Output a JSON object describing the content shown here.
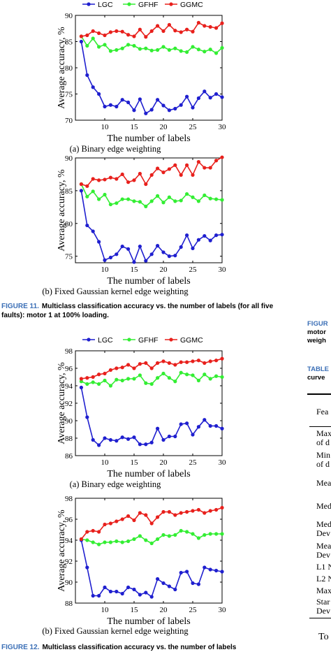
{
  "figure11": {
    "caption_number": "FIGURE 11.",
    "caption_text": "Multiclass classification accuracy vs. the number of labels (for all five faults): motor 1 at 100% loading."
  },
  "figure12": {
    "caption_number": "FIGURE 12.",
    "caption_text": "Multiclass classification accuracy vs. the number of labels"
  },
  "right_column": {
    "figure_fragment": [
      "FIGUR",
      "motor",
      "weigh"
    ],
    "table_fragment": [
      "TABLE",
      "curve"
    ],
    "table_cells": [
      "Fea",
      "Max",
      "of d",
      "Min",
      "of d",
      "Mea",
      "Med",
      "Med",
      "Dev",
      "Mea",
      "Dev",
      "L1 N",
      "L2 N",
      "Max",
      "Star",
      "Dev"
    ],
    "bottom_text": "To"
  },
  "chart_data": [
    {
      "id": "fig11a",
      "type": "line",
      "subcaption": "(a) Binary edge weighting",
      "xlabel": "The number of labels",
      "ylabel": "Average accuracy, %",
      "xlim": [
        5,
        30
      ],
      "ylim": [
        70,
        90
      ],
      "xticks": [
        10,
        15,
        20,
        25,
        30
      ],
      "yticks": [
        70,
        75,
        80,
        85,
        90
      ],
      "legend_position": "top",
      "x": [
        6,
        7,
        8,
        9,
        10,
        11,
        12,
        13,
        14,
        15,
        16,
        17,
        18,
        19,
        20,
        21,
        22,
        23,
        24,
        25,
        26,
        27,
        28,
        29,
        30
      ],
      "series": [
        {
          "name": "LGC",
          "color": "#1f1fcf",
          "values": [
            85.0,
            78.6,
            76.3,
            75.0,
            72.6,
            72.9,
            72.6,
            73.9,
            73.4,
            71.9,
            74.0,
            71.3,
            72.0,
            73.9,
            72.8,
            71.9,
            72.2,
            72.9,
            74.5,
            72.4,
            74.2,
            75.5,
            74.3,
            75.0,
            74.4
          ]
        },
        {
          "name": "GFHF",
          "color": "#33ee33",
          "values": [
            86.0,
            84.2,
            85.6,
            84.0,
            84.4,
            83.2,
            83.4,
            83.7,
            84.4,
            84.2,
            83.6,
            83.7,
            83.3,
            83.4,
            84.0,
            83.4,
            83.7,
            83.2,
            83.0,
            84.0,
            83.5,
            83.1,
            83.5,
            82.8,
            83.8
          ]
        },
        {
          "name": "GGMC",
          "color": "#e8201c",
          "values": [
            86.0,
            86.2,
            87.0,
            86.6,
            86.2,
            86.8,
            87.0,
            86.9,
            86.3,
            86.0,
            87.3,
            85.9,
            87.0,
            88.0,
            87.0,
            88.2,
            87.1,
            86.8,
            87.3,
            86.9,
            88.6,
            88.0,
            87.8,
            87.6,
            88.5
          ]
        }
      ]
    },
    {
      "id": "fig11b",
      "type": "line",
      "subcaption": "(b) Fixed Gaussian kernel edge weighting",
      "xlabel": "The number of labels",
      "ylabel": "Average accuracy, %",
      "xlim": [
        5,
        30
      ],
      "ylim": [
        74,
        90
      ],
      "xticks": [
        10,
        15,
        20,
        25,
        30
      ],
      "yticks": [
        75,
        80,
        85,
        90
      ],
      "legend_position": "none",
      "x": [
        6,
        7,
        8,
        9,
        10,
        11,
        12,
        13,
        14,
        15,
        16,
        17,
        18,
        19,
        20,
        21,
        22,
        23,
        24,
        25,
        26,
        27,
        28,
        29,
        30
      ],
      "series": [
        {
          "name": "LGC",
          "color": "#1f1fcf",
          "values": [
            85.0,
            79.7,
            78.8,
            77.2,
            74.4,
            74.8,
            75.3,
            76.5,
            76.1,
            74.1,
            76.5,
            74.3,
            75.3,
            76.6,
            75.6,
            75.0,
            75.1,
            76.4,
            78.2,
            76.2,
            77.5,
            78.1,
            77.4,
            78.2,
            78.3
          ]
        },
        {
          "name": "GFHF",
          "color": "#33ee33",
          "values": [
            86.0,
            84.1,
            84.9,
            83.7,
            84.4,
            82.9,
            83.1,
            83.7,
            83.7,
            83.4,
            83.3,
            82.6,
            83.4,
            84.2,
            83.2,
            84.0,
            83.4,
            83.5,
            84.5,
            84.0,
            83.4,
            84.3,
            83.8,
            83.7,
            83.6
          ]
        },
        {
          "name": "GGMC",
          "color": "#e8201c",
          "values": [
            86.0,
            85.7,
            86.8,
            86.6,
            86.7,
            87.0,
            86.8,
            87.5,
            86.3,
            86.6,
            87.6,
            86.0,
            87.4,
            88.4,
            87.8,
            88.3,
            88.9,
            87.4,
            88.9,
            87.4,
            89.4,
            88.5,
            88.5,
            89.6,
            90.1
          ]
        }
      ]
    },
    {
      "id": "fig12a",
      "type": "line",
      "subcaption": "(a) Binary edge weighting",
      "xlabel": "The number of labels",
      "ylabel": "Average accuracy, %",
      "xlim": [
        5,
        30
      ],
      "ylim": [
        86,
        98
      ],
      "xticks": [
        10,
        15,
        20,
        25,
        30
      ],
      "yticks": [
        86,
        88,
        90,
        92,
        94,
        96,
        98
      ],
      "legend_position": "top",
      "x": [
        6,
        7,
        8,
        9,
        10,
        11,
        12,
        13,
        14,
        15,
        16,
        17,
        18,
        19,
        20,
        21,
        22,
        23,
        24,
        25,
        26,
        27,
        28,
        29,
        30
      ],
      "series": [
        {
          "name": "LGC",
          "color": "#1f1fcf",
          "values": [
            93.8,
            90.4,
            87.8,
            87.2,
            88.0,
            87.8,
            87.7,
            88.1,
            87.9,
            88.1,
            87.3,
            87.3,
            87.5,
            89.1,
            87.8,
            88.2,
            88.2,
            89.6,
            89.7,
            88.4,
            89.3,
            90.1,
            89.4,
            89.4,
            89.1
          ]
        },
        {
          "name": "GFHF",
          "color": "#33ee33",
          "values": [
            94.5,
            94.2,
            94.4,
            94.2,
            94.6,
            94.0,
            94.7,
            94.6,
            94.8,
            94.8,
            95.2,
            94.3,
            94.2,
            94.9,
            95.4,
            94.9,
            94.5,
            95.5,
            95.3,
            95.2,
            94.6,
            95.3,
            94.8,
            95.1,
            95.0
          ]
        },
        {
          "name": "GGMC",
          "color": "#e8201c",
          "values": [
            94.8,
            94.9,
            95.0,
            95.3,
            95.4,
            95.8,
            96.0,
            96.1,
            96.4,
            96.0,
            96.5,
            96.6,
            96.0,
            96.6,
            96.8,
            96.6,
            96.4,
            96.7,
            96.7,
            96.8,
            96.9,
            96.6,
            96.8,
            96.9,
            97.1
          ]
        }
      ]
    },
    {
      "id": "fig12b",
      "type": "line",
      "subcaption": "(b) Fixed Gaussian kernel edge weighting",
      "xlabel": "The number of labels",
      "ylabel": "Average accuracy, %",
      "xlim": [
        5,
        30
      ],
      "ylim": [
        88,
        98
      ],
      "xticks": [
        10,
        15,
        20,
        25,
        30
      ],
      "yticks": [
        88,
        90,
        92,
        94,
        96,
        98
      ],
      "legend_position": "none",
      "x": [
        6,
        7,
        8,
        9,
        10,
        11,
        12,
        13,
        14,
        15,
        16,
        17,
        18,
        19,
        20,
        21,
        22,
        23,
        24,
        25,
        26,
        27,
        28,
        29,
        30
      ],
      "series": [
        {
          "name": "LGC",
          "color": "#1f1fcf",
          "values": [
            94.0,
            91.4,
            88.7,
            88.7,
            89.5,
            89.1,
            89.1,
            88.9,
            89.5,
            89.3,
            88.8,
            89.0,
            88.6,
            90.3,
            89.9,
            89.6,
            89.3,
            90.9,
            91.0,
            89.9,
            89.8,
            91.4,
            91.2,
            91.1,
            91.0
          ]
        },
        {
          "name": "GFHF",
          "color": "#33ee33",
          "values": [
            94.1,
            94.0,
            93.8,
            93.6,
            93.8,
            93.8,
            93.9,
            93.8,
            93.9,
            94.1,
            94.4,
            94.0,
            93.7,
            94.1,
            94.5,
            94.4,
            94.5,
            94.9,
            94.8,
            94.6,
            94.2,
            94.5,
            94.6,
            94.6,
            94.6
          ]
        },
        {
          "name": "GGMC",
          "color": "#e8201c",
          "values": [
            94.1,
            94.8,
            94.9,
            94.8,
            95.5,
            95.6,
            95.8,
            96.0,
            96.3,
            95.9,
            96.6,
            96.4,
            95.6,
            96.2,
            96.7,
            96.7,
            96.4,
            96.6,
            96.7,
            96.8,
            96.9,
            96.6,
            96.8,
            96.9,
            97.1
          ]
        }
      ]
    }
  ]
}
